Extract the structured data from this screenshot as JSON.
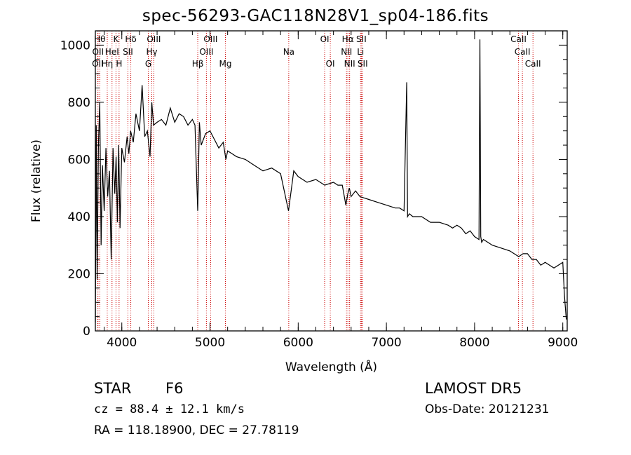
{
  "chart_data": {
    "type": "line",
    "title": "spec-56293-GAC118N28V1_sp04-186.fits",
    "xlabel": "Wavelength (Å)",
    "ylabel": "Flux (relative)",
    "xlim": [
      3700,
      9050
    ],
    "ylim": [
      0,
      1050
    ],
    "xticks": [
      4000,
      5000,
      6000,
      7000,
      8000,
      9000
    ],
    "yticks": [
      0,
      200,
      400,
      600,
      800,
      1000
    ],
    "grid": false,
    "series": [
      {
        "x": [
          3700,
          3710,
          3720,
          3735,
          3750,
          3765,
          3780,
          3800,
          3820,
          3840,
          3860,
          3880,
          3900,
          3920,
          3935,
          3950,
          3965,
          3980,
          4000,
          4030,
          4060,
          4080,
          4100,
          4130,
          4160,
          4200,
          4230,
          4260,
          4290,
          4320,
          4340,
          4360,
          4400,
          4450,
          4500,
          4550,
          4600,
          4650,
          4700,
          4750,
          4800,
          4830,
          4861,
          4880,
          4900,
          4950,
          5000,
          5050,
          5100,
          5150,
          5180,
          5200,
          5250,
          5300,
          5400,
          5500,
          5600,
          5700,
          5800,
          5890,
          5950,
          6000,
          6100,
          6200,
          6300,
          6400,
          6450,
          6500,
          6540,
          6563,
          6580,
          6600,
          6650,
          6700,
          6800,
          6900,
          7000,
          7100,
          7150,
          7200,
          7230,
          7240,
          7260,
          7300,
          7400,
          7500,
          7600,
          7700,
          7750,
          7800,
          7850,
          7900,
          7950,
          8000,
          8050,
          8060,
          8070,
          8080,
          8100,
          8150,
          8200,
          8300,
          8400,
          8500,
          8550,
          8600,
          8650,
          8700,
          8750,
          8800,
          8850,
          8900,
          8950,
          9000,
          9020,
          9040
        ],
        "y": [
          30,
          720,
          180,
          650,
          800,
          300,
          580,
          420,
          640,
          470,
          560,
          250,
          640,
          480,
          610,
          380,
          650,
          360,
          640,
          590,
          680,
          620,
          700,
          660,
          760,
          700,
          860,
          680,
          700,
          610,
          800,
          720,
          730,
          740,
          720,
          780,
          730,
          760,
          750,
          720,
          740,
          720,
          420,
          730,
          650,
          690,
          700,
          670,
          640,
          660,
          600,
          630,
          620,
          610,
          600,
          580,
          560,
          570,
          550,
          420,
          560,
          540,
          520,
          530,
          510,
          520,
          510,
          510,
          440,
          480,
          500,
          470,
          490,
          470,
          460,
          450,
          440,
          430,
          430,
          420,
          870,
          400,
          410,
          400,
          400,
          380,
          380,
          370,
          360,
          370,
          360,
          340,
          350,
          330,
          320,
          1020,
          330,
          310,
          320,
          310,
          300,
          290,
          280,
          260,
          270,
          270,
          250,
          250,
          230,
          240,
          230,
          220,
          230,
          240,
          120,
          40
        ]
      }
    ],
    "lines": [
      {
        "x": 3750,
        "label": "Hθ",
        "row": 0
      },
      {
        "x": 3730,
        "label": "OII",
        "row": 1
      },
      {
        "x": 3727,
        "label": "OII",
        "row": 2
      },
      {
        "x": 3835,
        "label": "Hη",
        "row": 2
      },
      {
        "x": 3889,
        "label": "HeI",
        "row": 1
      },
      {
        "x": 3934,
        "label": "K",
        "row": 0
      },
      {
        "x": 3969,
        "label": "H",
        "row": 2
      },
      {
        "x": 4069,
        "label": "SII",
        "row": 1
      },
      {
        "x": 4102,
        "label": "Hδ",
        "row": 0
      },
      {
        "x": 4300,
        "label": "G",
        "row": 2
      },
      {
        "x": 4340,
        "label": "Hγ",
        "row": 1
      },
      {
        "x": 4363,
        "label": "OIII",
        "row": 0
      },
      {
        "x": 4861,
        "label": "Hβ",
        "row": 2
      },
      {
        "x": 4959,
        "label": "OIII",
        "row": 1
      },
      {
        "x": 5007,
        "label": "OIII",
        "row": 0
      },
      {
        "x": 5175,
        "label": "Mg",
        "row": 2
      },
      {
        "x": 5893,
        "label": "Na",
        "row": 1
      },
      {
        "x": 6300,
        "label": "OI",
        "row": 0
      },
      {
        "x": 6364,
        "label": "OI",
        "row": 2
      },
      {
        "x": 6548,
        "label": "NII",
        "row": 1
      },
      {
        "x": 6563,
        "label": "Hα",
        "row": 0
      },
      {
        "x": 6583,
        "label": "NII",
        "row": 2
      },
      {
        "x": 6707,
        "label": "Li",
        "row": 1
      },
      {
        "x": 6716,
        "label": "SII",
        "row": 0
      },
      {
        "x": 6731,
        "label": "SII",
        "row": 2
      },
      {
        "x": 8498,
        "label": "CaII",
        "row": 0
      },
      {
        "x": 8542,
        "label": "CaII",
        "row": 1
      },
      {
        "x": 8662,
        "label": "CaII",
        "row": 2
      }
    ],
    "line_color": "#cc0000"
  },
  "info": {
    "class": "STAR",
    "subclass": "F6",
    "survey": "LAMOST DR5",
    "cz": "cz = 88.4 ± 12.1 km/s",
    "obs_date": "Obs-Date: 20121231",
    "radec": "RA = 118.18900, DEC =  27.78119"
  }
}
